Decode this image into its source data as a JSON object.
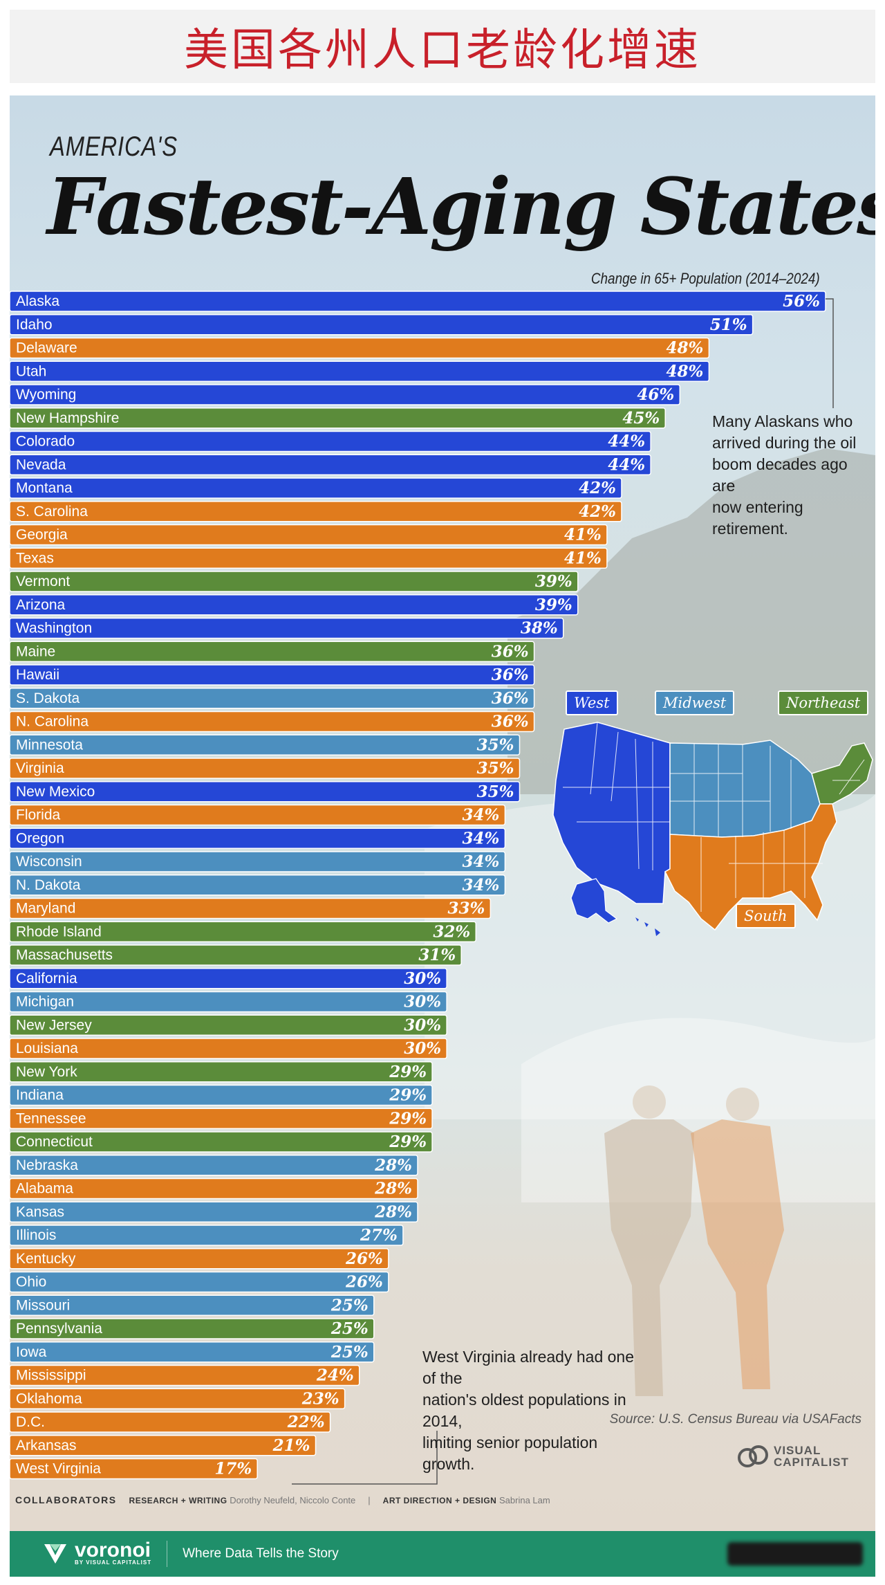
{
  "header": {
    "title": "美国各州人口老龄化增速"
  },
  "infographic": {
    "kicker": "AMERICA'S",
    "title": "Fastest-Aging States",
    "subtitle": "Change in 65+ Population (2014–2024)",
    "note_alaska": "Many Alaskans who\narrived during the oil\nboom decades ago are\nnow entering retirement.",
    "note_wv": "West Virginia already had one of the\nnation's oldest populations in 2014,\nlimiting senior population growth.",
    "source": "Source: U.S. Census Bureau via USAFacts",
    "logo_text": "VISUAL\nCAPITALIST"
  },
  "map_legend": {
    "west": "West",
    "midwest": "Midwest",
    "northeast": "Northeast",
    "south": "South"
  },
  "region_colors": {
    "West": "#2547d6",
    "Midwest": "#4c8fbf",
    "Northeast": "#5b8c3a",
    "South": "#e07b1d"
  },
  "collaborators": {
    "label": "COLLABORATORS",
    "research_role": "RESEARCH + WRITING",
    "research_people": "Dorothy Neufeld, Niccolo Conte",
    "separator": "|",
    "design_role": "ART DIRECTION + DESIGN",
    "design_people": "Sabrina Lam"
  },
  "footer": {
    "brand": "voronoi",
    "brand_sub": "BY VISUAL CAPITALIST",
    "tagline": "Where Data Tells the Story"
  },
  "chart_data": {
    "type": "bar",
    "orientation": "horizontal",
    "title": "Fastest-Aging States",
    "subtitle": "Change in 65+ Population (2014–2024)",
    "unit": "%",
    "categories": [
      "Alaska",
      "Idaho",
      "Delaware",
      "Utah",
      "Wyoming",
      "New Hampshire",
      "Colorado",
      "Nevada",
      "Montana",
      "S. Carolina",
      "Georgia",
      "Texas",
      "Vermont",
      "Arizona",
      "Washington",
      "Maine",
      "Hawaii",
      "S. Dakota",
      "N. Carolina",
      "Minnesota",
      "Virginia",
      "New Mexico",
      "Florida",
      "Oregon",
      "Wisconsin",
      "N. Dakota",
      "Maryland",
      "Rhode Island",
      "Massachusetts",
      "California",
      "Michigan",
      "New Jersey",
      "Louisiana",
      "New York",
      "Indiana",
      "Tennessee",
      "Connecticut",
      "Nebraska",
      "Alabama",
      "Kansas",
      "Illinois",
      "Kentucky",
      "Ohio",
      "Missouri",
      "Pennsylvania",
      "Iowa",
      "Mississippi",
      "Oklahoma",
      "D.C.",
      "Arkansas",
      "West Virginia"
    ],
    "values": [
      56,
      51,
      48,
      48,
      46,
      45,
      44,
      44,
      42,
      42,
      41,
      41,
      39,
      39,
      38,
      36,
      36,
      36,
      36,
      35,
      35,
      35,
      34,
      34,
      34,
      34,
      33,
      32,
      31,
      30,
      30,
      30,
      30,
      29,
      29,
      29,
      29,
      28,
      28,
      28,
      27,
      26,
      26,
      25,
      25,
      25,
      24,
      23,
      22,
      21,
      17
    ],
    "value_labels": [
      "56%",
      "51%",
      "48%",
      "48%",
      "46%",
      "45%",
      "44%",
      "44%",
      "42%",
      "42%",
      "41%",
      "41%",
      "39%",
      "39%",
      "38%",
      "36%",
      "36%",
      "36%",
      "36%",
      "35%",
      "35%",
      "35%",
      "34%",
      "34%",
      "34%",
      "34%",
      "33%",
      "32%",
      "31%",
      "30%",
      "30%",
      "30%",
      "30%",
      "29%",
      "29%",
      "29%",
      "29%",
      "28%",
      "28%",
      "28%",
      "27%",
      "26%",
      "26%",
      "25%",
      "25%",
      "25%",
      "24%",
      "23%",
      "22%",
      "21%",
      "17%"
    ],
    "regions": [
      "West",
      "West",
      "South",
      "West",
      "West",
      "Northeast",
      "West",
      "West",
      "West",
      "South",
      "South",
      "South",
      "Northeast",
      "West",
      "West",
      "Northeast",
      "West",
      "Midwest",
      "South",
      "Midwest",
      "South",
      "West",
      "South",
      "West",
      "Midwest",
      "Midwest",
      "South",
      "Northeast",
      "Northeast",
      "West",
      "Midwest",
      "Northeast",
      "South",
      "Northeast",
      "Midwest",
      "South",
      "Northeast",
      "Midwest",
      "South",
      "Midwest",
      "Midwest",
      "South",
      "Midwest",
      "Midwest",
      "Northeast",
      "Midwest",
      "South",
      "South",
      "South",
      "South",
      "South"
    ],
    "legend": [
      "West",
      "Midwest",
      "Northeast",
      "South"
    ]
  }
}
